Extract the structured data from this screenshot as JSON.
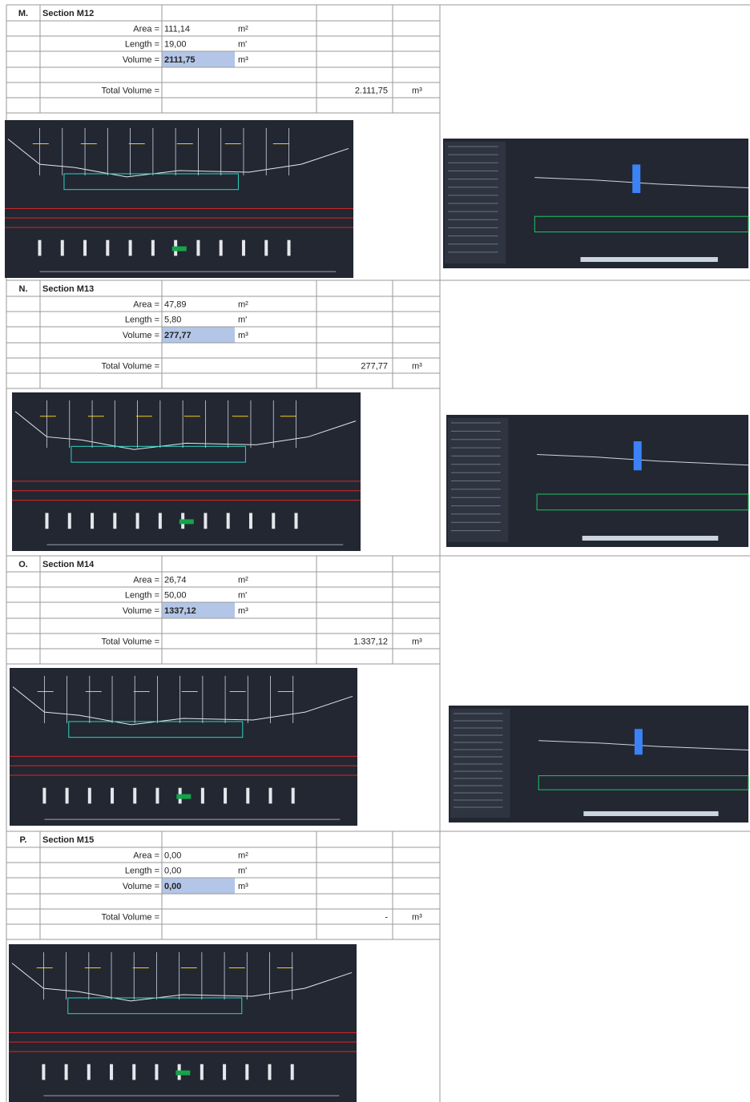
{
  "sections": [
    {
      "letter": "M.",
      "title": "Section M12",
      "area_label": "Area =",
      "area": "111,14",
      "area_unit": "m²",
      "length_label": "Length =",
      "length": "19,00",
      "length_unit": "m'",
      "volume_label": "Volume =",
      "volume": "2111,75",
      "volume_unit": "m³",
      "total_label": "Total Volume =",
      "total": "2.111,75",
      "total_unit": "m³"
    },
    {
      "letter": "N.",
      "title": "Section M13",
      "area_label": "Area =",
      "area": "47,89",
      "area_unit": "m²",
      "length_label": "Length =",
      "length": "5,80",
      "length_unit": "m'",
      "volume_label": "Volume =",
      "volume": "277,77",
      "volume_unit": "m³",
      "total_label": "Total Volume =",
      "total": "277,77",
      "total_unit": "m³"
    },
    {
      "letter": "O.",
      "title": "Section M14",
      "area_label": "Area =",
      "area": "26,74",
      "area_unit": "m²",
      "length_label": "Length =",
      "length": "50,00",
      "length_unit": "m'",
      "volume_label": "Volume =",
      "volume": "1337,12",
      "volume_unit": "m³",
      "total_label": "Total Volume =",
      "total": "1.337,12",
      "total_unit": "m³"
    },
    {
      "letter": "P.",
      "title": "Section M15",
      "area_label": "Area =",
      "area": "0,00",
      "area_unit": "m²",
      "length_label": "Length =",
      "length": "0,00",
      "length_unit": "m'",
      "volume_label": "Volume =",
      "volume": "0,00",
      "volume_unit": "m³",
      "total_label": "Total Volume =",
      "total": "-",
      "total_unit": "m³"
    }
  ]
}
